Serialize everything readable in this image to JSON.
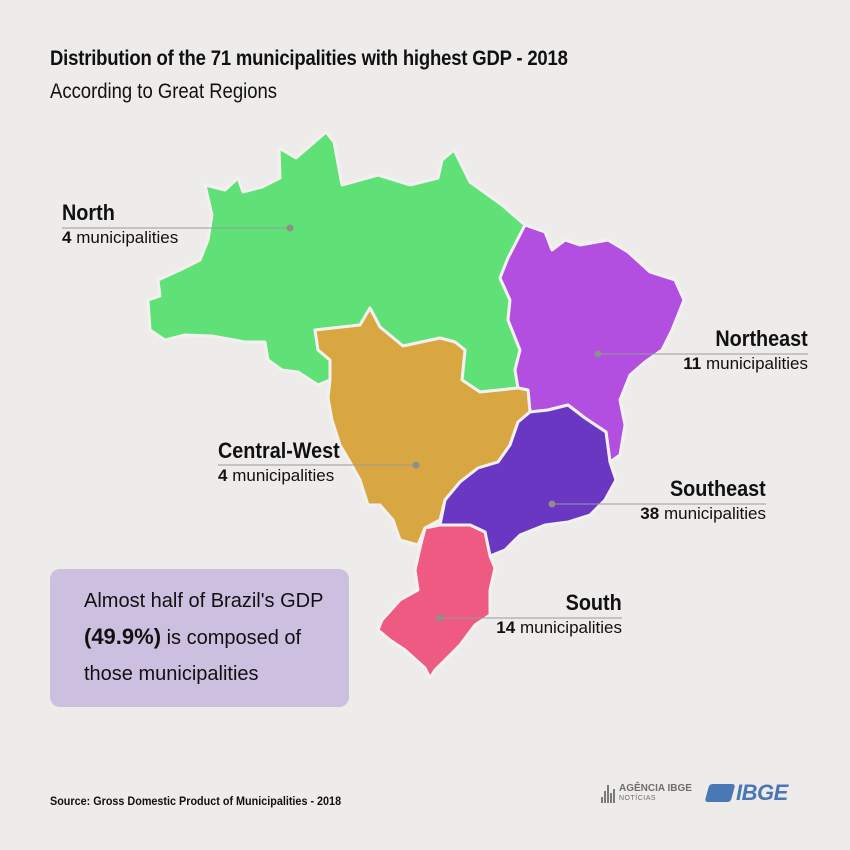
{
  "header": {
    "title": "Distribution of the 71 municipalities with highest GDP - 2018",
    "subtitle": "According to Great Regions"
  },
  "regions": [
    {
      "id": "north",
      "name": "North",
      "count": "4",
      "unit": "municipalities",
      "color": "#5fe178"
    },
    {
      "id": "northeast",
      "name": "Northeast",
      "count": "11",
      "unit": "municipalities",
      "color": "#b24ee0"
    },
    {
      "id": "central-west",
      "name": "Central-West",
      "count": "4",
      "unit": "municipalities",
      "color": "#d9a741"
    },
    {
      "id": "southeast",
      "name": "Southeast",
      "count": "38",
      "unit": "municipalities",
      "color": "#6a37c3"
    },
    {
      "id": "south",
      "name": "South",
      "count": "14",
      "unit": "municipalities",
      "color": "#ef5a82"
    }
  ],
  "note": {
    "line1": "Almost half of Brazil's GDP",
    "highlight": "(49.9%)",
    "line2_rest": " is composed of",
    "line3": "those municipalities",
    "background": "#cdbfe0"
  },
  "footer": {
    "source": "Source: Gross Domestic Product of Municipalities - 2018",
    "agency_name": "AGÊNCIA IBGE",
    "agency_sub": "NOTÍCIAS",
    "brand": "IBGE",
    "brand_color": "#4a78b5"
  }
}
